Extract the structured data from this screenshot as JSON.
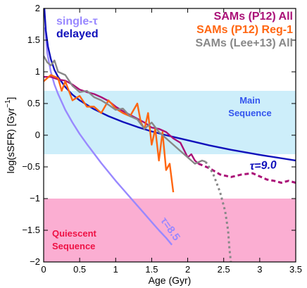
{
  "chart_data": {
    "type": "line",
    "xlabel": "Age (Gyr)",
    "ylabel": "log(sSFR) [Gyr",
    "ylabel_sup": "−1",
    "ylabel_end": "]",
    "xlim": [
      0,
      3.5
    ],
    "ylim": [
      -2,
      2
    ],
    "xticks": [
      0,
      0.5,
      1,
      1.5,
      2,
      2.5,
      3,
      3.5
    ],
    "xtick_labels": [
      "0",
      "0.5",
      "1",
      "1.5",
      "2",
      "2.5",
      "3",
      "3.5"
    ],
    "yticks": [
      -2,
      -1.5,
      -1,
      -0.5,
      0,
      0.5,
      1,
      1.5,
      2
    ],
    "ytick_labels": [
      "−2",
      "−1.5",
      "−1",
      "−0.5",
      "0",
      "0.5",
      "1",
      "1.5",
      "2"
    ],
    "grid": false,
    "regions": [
      {
        "name": "Main Sequence",
        "label_line1": "Main",
        "label_line2": "Sequence",
        "y_range": [
          -0.3,
          0.7
        ],
        "color": "#cdeefa",
        "label_color": "#3355ee"
      },
      {
        "name": "Quiescent Sequence",
        "label_line1": "Quiescent",
        "label_line2": "Sequence",
        "y_range": [
          -2,
          -1
        ],
        "color": "#fbaed2",
        "label_color": "#ee1144"
      }
    ],
    "legend": {
      "left": [
        {
          "label": "single-τ",
          "color": "#9988ff"
        },
        {
          "label": "delayed",
          "color": "#1111bb"
        }
      ],
      "right": [
        {
          "label": "SAMs (P12) All",
          "color": "#aa1177"
        },
        {
          "label": "SAMs (P12) Reg-1",
          "color": "#ff6611"
        },
        {
          "label": "SAMs (Lee+13) All",
          "color": "#888888"
        }
      ]
    },
    "annotations": [
      {
        "text": "τ=9.0",
        "color": "#1111bb"
      },
      {
        "text": "τ=8.5",
        "color": "#9988ff"
      }
    ],
    "series": [
      {
        "name": "single-τ",
        "color": "#9988ff",
        "style": "solid",
        "x": [
          0.02,
          0.05,
          0.1,
          0.15,
          0.2,
          0.3,
          0.4,
          0.5,
          0.6,
          0.7,
          0.8,
          0.9,
          1.0,
          1.1,
          1.2,
          1.3,
          1.4,
          1.5,
          1.6,
          1.7,
          1.78
        ],
        "y": [
          1.7,
          1.3,
          1.0,
          0.8,
          0.65,
          0.4,
          0.2,
          0.02,
          -0.14,
          -0.29,
          -0.44,
          -0.58,
          -0.72,
          -0.85,
          -0.98,
          -1.11,
          -1.24,
          -1.37,
          -1.5,
          -1.62,
          -1.73
        ]
      },
      {
        "name": "delayed",
        "color": "#1111bb",
        "style": "solid",
        "x": [
          0.01,
          0.03,
          0.06,
          0.1,
          0.15,
          0.2,
          0.3,
          0.4,
          0.5,
          0.7,
          0.9,
          1.1,
          1.3,
          1.5,
          1.7,
          2.0,
          2.3,
          2.6,
          3.0,
          3.5
        ],
        "y": [
          2.0,
          1.65,
          1.4,
          1.2,
          1.03,
          0.92,
          0.76,
          0.64,
          0.55,
          0.41,
          0.3,
          0.21,
          0.13,
          0.06,
          0.0,
          -0.08,
          -0.16,
          -0.23,
          -0.31,
          -0.4
        ]
      },
      {
        "name": "SAMs (P12) All",
        "color": "#aa1177",
        "style": "solid",
        "x": [
          0.0,
          0.1,
          0.2,
          0.3,
          0.4,
          0.5,
          0.6,
          0.7,
          0.8,
          0.9,
          1.0,
          1.1,
          1.2,
          1.3,
          1.4,
          1.5,
          1.6,
          1.7,
          1.8,
          1.9,
          2.0,
          2.05,
          2.1,
          2.15
        ],
        "y": [
          0.92,
          0.92,
          0.88,
          0.86,
          0.8,
          0.72,
          0.68,
          0.65,
          0.6,
          0.54,
          0.45,
          0.38,
          0.32,
          0.26,
          0.2,
          0.12,
          0.1,
          0.05,
          -0.05,
          -0.12,
          -0.35,
          -0.3,
          -0.4,
          -0.45
        ]
      },
      {
        "name": "SAMs (P12) All (extension)",
        "color": "#aa1177",
        "style": "dashed",
        "x": [
          2.15,
          2.3,
          2.45,
          2.6,
          2.75,
          2.9,
          3.0,
          3.1,
          3.2,
          3.3,
          3.4,
          3.5
        ],
        "y": [
          -0.45,
          -0.52,
          -0.62,
          -0.66,
          -0.62,
          -0.6,
          -0.65,
          -0.7,
          -0.72,
          -0.75,
          -0.72,
          -0.75
        ]
      },
      {
        "name": "SAMs (P12) Reg-1",
        "color": "#ff6611",
        "style": "solid",
        "x": [
          0.0,
          0.1,
          0.2,
          0.25,
          0.3,
          0.4,
          0.5,
          0.6,
          0.7,
          0.8,
          0.9,
          1.0,
          1.1,
          1.2,
          1.3,
          1.35,
          1.4,
          1.45,
          1.5,
          1.55,
          1.6,
          1.65,
          1.7,
          1.75,
          1.8
        ],
        "y": [
          0.85,
          0.95,
          0.9,
          0.7,
          0.85,
          0.55,
          0.62,
          0.45,
          0.45,
          0.35,
          0.55,
          0.42,
          0.35,
          0.3,
          0.5,
          0.2,
          0.1,
          0.35,
          -0.15,
          0.1,
          -0.4,
          0.05,
          -0.55,
          -0.45,
          -0.9
        ]
      },
      {
        "name": "SAMs (Lee+13) All",
        "color": "#888888",
        "style": "solid",
        "x": [
          0.0,
          0.05,
          0.1,
          0.15,
          0.2,
          0.3,
          0.4,
          0.5,
          0.6,
          0.7,
          0.8,
          0.9,
          1.0,
          1.1,
          1.2,
          1.3,
          1.4,
          1.5,
          1.6,
          1.7,
          1.8,
          1.9,
          2.0,
          2.1,
          2.2,
          2.25
        ],
        "y": [
          1.25,
          1.15,
          1.1,
          1.18,
          1.0,
          0.95,
          0.78,
          0.68,
          0.7,
          0.6,
          0.55,
          0.48,
          0.4,
          0.42,
          0.3,
          0.25,
          0.1,
          0.2,
          0.05,
          -0.05,
          -0.15,
          -0.25,
          -0.35,
          -0.45,
          -0.4,
          -0.42
        ]
      },
      {
        "name": "SAMs (Lee+13) All (extension)",
        "color": "#888888",
        "style": "dotted",
        "x": [
          2.25,
          2.35,
          2.45,
          2.52,
          2.56,
          2.58,
          2.6
        ],
        "y": [
          -0.42,
          -0.6,
          -0.9,
          -1.2,
          -1.5,
          -1.8,
          -2.0
        ]
      }
    ]
  }
}
